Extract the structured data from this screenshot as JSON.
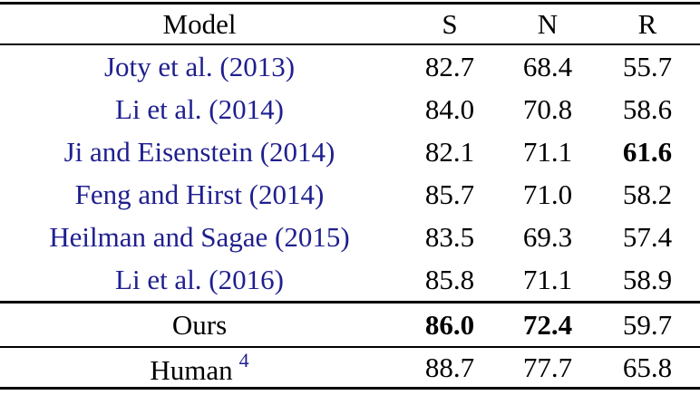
{
  "colors": {
    "citation_blue": "#1f1f8f",
    "text_black": "#000000",
    "rule_black": "#000000"
  },
  "header": {
    "model": "Model",
    "s": "S",
    "n": "N",
    "r": "R"
  },
  "rows": [
    {
      "model": "Joty et al. (2013)",
      "s": "82.7",
      "n": "68.4",
      "r": "55.7"
    },
    {
      "model": "Li et al. (2014)",
      "s": "84.0",
      "n": "70.8",
      "r": "58.6"
    },
    {
      "model": "Ji and Eisenstein (2014)",
      "s": "82.1",
      "n": "71.1",
      "r": "61.6"
    },
    {
      "model": "Feng and Hirst (2014)",
      "s": "85.7",
      "n": "71.0",
      "r": "58.2"
    },
    {
      "model": "Heilman and Sagae (2015)",
      "s": "83.5",
      "n": "69.3",
      "r": "57.4"
    },
    {
      "model": "Li et al. (2016)",
      "s": "85.8",
      "n": "71.1",
      "r": "58.9"
    }
  ],
  "ours_row": {
    "model": "Ours",
    "s": "86.0",
    "n": "72.4",
    "r": "59.7"
  },
  "human_row": {
    "model": "Human",
    "footnote_marker": "4",
    "s": "88.7",
    "n": "77.7",
    "r": "65.8"
  },
  "emphasis": {
    "bold_cells": [
      "rows.2.r",
      "ours_row.s",
      "ours_row.n"
    ]
  }
}
